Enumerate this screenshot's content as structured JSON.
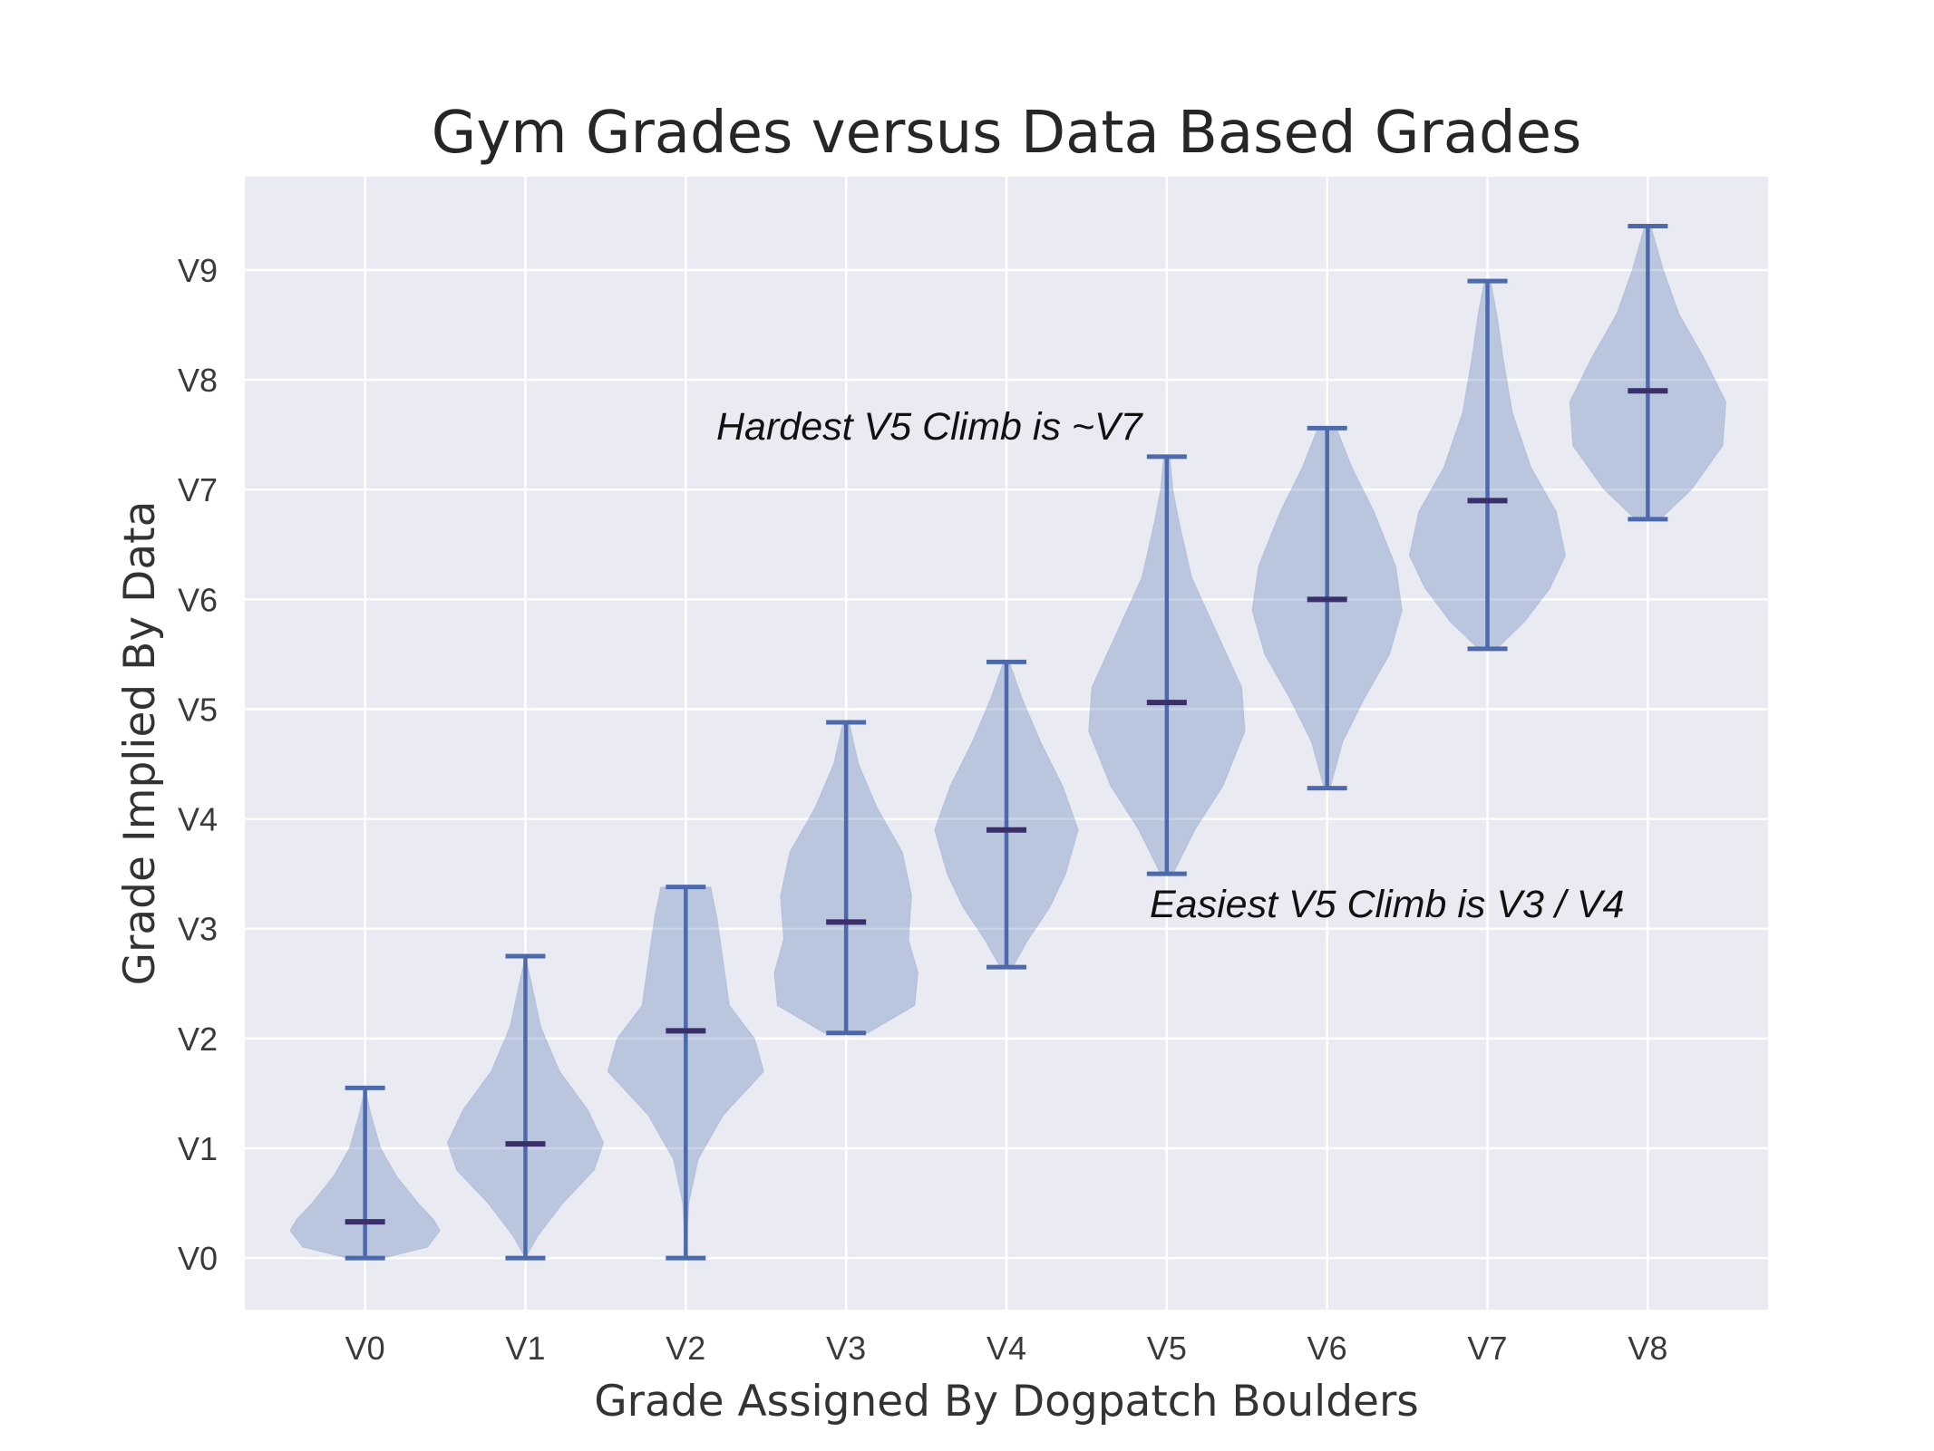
{
  "chart_data": {
    "type": "violin",
    "title": "Gym Grades versus Data Based Grades",
    "xlabel": "Grade Assigned By Dogpatch Boulders",
    "ylabel": "Grade Implied By Data",
    "categories": [
      "V0",
      "V1",
      "V2",
      "V3",
      "V4",
      "V5",
      "V6",
      "V7",
      "V8"
    ],
    "y_tick_labels": [
      "V0",
      "V1",
      "V2",
      "V3",
      "V4",
      "V5",
      "V6",
      "V7",
      "V8",
      "V9"
    ],
    "y_ticks": [
      0,
      1,
      2,
      3,
      4,
      5,
      6,
      7,
      8,
      9
    ],
    "ylim": [
      -0.47,
      9.85
    ],
    "grid": true,
    "colors": {
      "background": "#eaeaf2",
      "grid": "#ffffff",
      "violin_fill": "#4c72b0",
      "whisker": "#4c6aab",
      "median": "#3a2f6b"
    },
    "violins": [
      {
        "category": "V0",
        "min": 0.0,
        "max": 1.55,
        "median": 0.33,
        "profile": [
          [
            0.0,
            0.06
          ],
          [
            0.1,
            0.2
          ],
          [
            0.25,
            0.24
          ],
          [
            0.35,
            0.22
          ],
          [
            0.5,
            0.17
          ],
          [
            0.75,
            0.1
          ],
          [
            1.0,
            0.05
          ],
          [
            1.3,
            0.02
          ],
          [
            1.55,
            0.0
          ]
        ]
      },
      {
        "category": "V1",
        "min": 0.0,
        "max": 2.75,
        "median": 1.04,
        "profile": [
          [
            0.0,
            0.0
          ],
          [
            0.2,
            0.04
          ],
          [
            0.5,
            0.12
          ],
          [
            0.8,
            0.22
          ],
          [
            1.05,
            0.25
          ],
          [
            1.35,
            0.2
          ],
          [
            1.7,
            0.11
          ],
          [
            2.1,
            0.05
          ],
          [
            2.5,
            0.02
          ],
          [
            2.75,
            0.0
          ]
        ]
      },
      {
        "category": "V2",
        "min": 0.0,
        "max": 3.38,
        "median": 2.07,
        "profile": [
          [
            0.0,
            0.0
          ],
          [
            0.5,
            0.01
          ],
          [
            0.9,
            0.04
          ],
          [
            1.3,
            0.12
          ],
          [
            1.7,
            0.25
          ],
          [
            2.0,
            0.22
          ],
          [
            2.3,
            0.14
          ],
          [
            2.7,
            0.12
          ],
          [
            3.1,
            0.1
          ],
          [
            3.38,
            0.08
          ]
        ]
      },
      {
        "category": "V3",
        "min": 2.05,
        "max": 4.88,
        "median": 3.06,
        "profile": [
          [
            2.05,
            0.07
          ],
          [
            2.3,
            0.22
          ],
          [
            2.6,
            0.23
          ],
          [
            2.9,
            0.2
          ],
          [
            3.3,
            0.21
          ],
          [
            3.7,
            0.18
          ],
          [
            4.1,
            0.1
          ],
          [
            4.5,
            0.04
          ],
          [
            4.88,
            0.01
          ]
        ]
      },
      {
        "category": "V4",
        "min": 2.65,
        "max": 5.43,
        "median": 3.9,
        "profile": [
          [
            2.65,
            0.02
          ],
          [
            2.9,
            0.07
          ],
          [
            3.2,
            0.14
          ],
          [
            3.5,
            0.19
          ],
          [
            3.9,
            0.23
          ],
          [
            4.3,
            0.18
          ],
          [
            4.7,
            0.11
          ],
          [
            5.1,
            0.05
          ],
          [
            5.43,
            0.01
          ]
        ]
      },
      {
        "category": "V5",
        "min": 3.5,
        "max": 7.3,
        "median": 5.06,
        "profile": [
          [
            3.5,
            0.02
          ],
          [
            3.9,
            0.09
          ],
          [
            4.3,
            0.18
          ],
          [
            4.8,
            0.25
          ],
          [
            5.2,
            0.24
          ],
          [
            5.7,
            0.16
          ],
          [
            6.2,
            0.08
          ],
          [
            6.7,
            0.04
          ],
          [
            7.0,
            0.02
          ],
          [
            7.3,
            0.01
          ]
        ]
      },
      {
        "category": "V6",
        "min": 4.28,
        "max": 7.56,
        "median": 6.0,
        "profile": [
          [
            4.28,
            0.01
          ],
          [
            4.7,
            0.05
          ],
          [
            5.1,
            0.12
          ],
          [
            5.5,
            0.2
          ],
          [
            5.9,
            0.24
          ],
          [
            6.3,
            0.22
          ],
          [
            6.8,
            0.15
          ],
          [
            7.2,
            0.08
          ],
          [
            7.56,
            0.03
          ]
        ]
      },
      {
        "category": "V7",
        "min": 5.55,
        "max": 8.9,
        "median": 6.9,
        "profile": [
          [
            5.55,
            0.03
          ],
          [
            5.8,
            0.12
          ],
          [
            6.1,
            0.2
          ],
          [
            6.4,
            0.25
          ],
          [
            6.8,
            0.22
          ],
          [
            7.2,
            0.14
          ],
          [
            7.7,
            0.08
          ],
          [
            8.2,
            0.05
          ],
          [
            8.6,
            0.03
          ],
          [
            8.9,
            0.01
          ]
        ]
      },
      {
        "category": "V8",
        "min": 6.73,
        "max": 9.4,
        "median": 7.9,
        "profile": [
          [
            6.73,
            0.04
          ],
          [
            7.0,
            0.14
          ],
          [
            7.4,
            0.24
          ],
          [
            7.8,
            0.25
          ],
          [
            8.2,
            0.18
          ],
          [
            8.6,
            0.1
          ],
          [
            9.0,
            0.05
          ],
          [
            9.4,
            0.01
          ]
        ]
      }
    ],
    "annotations": [
      {
        "text": "Hardest V5 Climb is ~V7"
      },
      {
        "text": "Easiest V5 Climb is V3 / V4"
      }
    ]
  }
}
